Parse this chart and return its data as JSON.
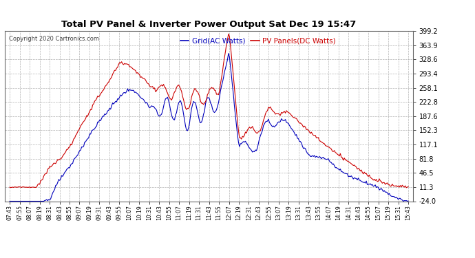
{
  "title": "Total PV Panel & Inverter Power Output Sat Dec 19 15:47",
  "copyright": "Copyright 2020 Cartronics.com",
  "legend_blue": "Grid(AC Watts)",
  "legend_red": "PV Panels(DC Watts)",
  "blue_color": "#0000bb",
  "red_color": "#cc0000",
  "background_color": "#ffffff",
  "grid_color": "#aaaaaa",
  "ylim": [
    -24.0,
    399.2
  ],
  "yticks": [
    -24.0,
    11.3,
    46.5,
    81.8,
    117.1,
    152.3,
    187.6,
    222.8,
    258.1,
    293.4,
    328.6,
    363.9,
    399.2
  ],
  "x_labels": [
    "07:43",
    "07:55",
    "08:07",
    "08:19",
    "08:31",
    "08:43",
    "08:55",
    "09:07",
    "09:19",
    "09:31",
    "09:43",
    "09:55",
    "10:07",
    "10:19",
    "10:31",
    "10:43",
    "10:55",
    "11:07",
    "11:19",
    "11:31",
    "11:43",
    "11:55",
    "12:07",
    "12:19",
    "12:31",
    "12:43",
    "12:55",
    "13:07",
    "13:19",
    "13:31",
    "13:43",
    "13:55",
    "14:07",
    "14:19",
    "14:31",
    "14:43",
    "14:55",
    "15:07",
    "15:19",
    "15:31",
    "15:43"
  ]
}
